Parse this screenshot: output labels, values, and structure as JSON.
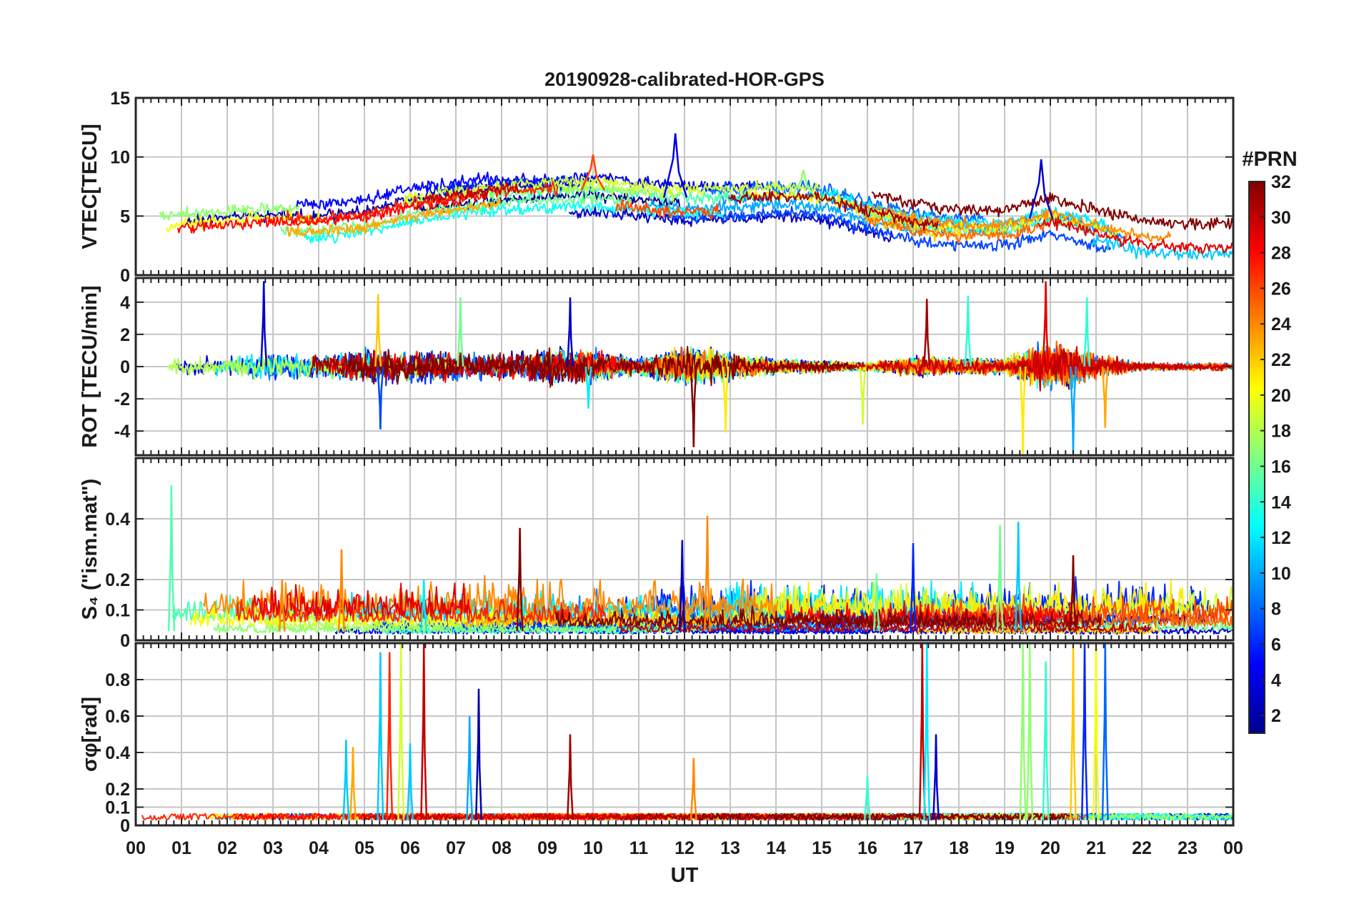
{
  "figure": {
    "title": "20190928-calibrated-HOR-GPS",
    "xlabel": "UT",
    "x_tick_labels": [
      "00",
      "01",
      "02",
      "03",
      "04",
      "05",
      "06",
      "07",
      "08",
      "09",
      "10",
      "11",
      "12",
      "13",
      "14",
      "15",
      "16",
      "17",
      "18",
      "19",
      "20",
      "21",
      "22",
      "23",
      "00"
    ]
  },
  "colorbar": {
    "title": "#PRN",
    "ticks": [
      2,
      4,
      6,
      8,
      10,
      12,
      14,
      16,
      18,
      20,
      22,
      24,
      26,
      28,
      30,
      32
    ],
    "range": [
      1,
      32
    ],
    "colormap": "jet",
    "stops": [
      "#00008f",
      "#0000ff",
      "#0080ff",
      "#00ffff",
      "#80ff80",
      "#ffff00",
      "#ff8000",
      "#ff0000",
      "#800000"
    ]
  },
  "chart_data": [
    {
      "type": "line",
      "panel": "vtec",
      "ylabel": "VTEC[TECU]",
      "ylim": [
        0,
        15
      ],
      "yticks": [
        0,
        5,
        10,
        15
      ],
      "xlim": [
        0,
        24
      ],
      "series_count": 32,
      "profile": {
        "x": [
          0,
          1,
          2,
          3,
          4,
          5,
          6,
          7,
          8,
          9,
          10,
          11,
          12,
          13,
          14,
          15,
          16,
          17,
          18,
          19,
          20,
          21,
          22,
          23,
          24
        ],
        "y": [
          3.5,
          4.0,
          4.3,
          4.5,
          4.4,
          4.8,
          5.8,
          6.3,
          6.8,
          7.0,
          7.2,
          6.8,
          6.5,
          6.5,
          6.8,
          6.6,
          5.5,
          4.5,
          4.0,
          4.0,
          5.0,
          4.0,
          3.0,
          2.8,
          2.8
        ]
      },
      "spread": 1.3,
      "notable": [
        {
          "x": 10.0,
          "y": 10.2
        },
        {
          "x": 11.8,
          "y": 12.0
        },
        {
          "x": 14.6,
          "y": 8.9
        },
        {
          "x": 19.8,
          "y": 9.8
        }
      ]
    },
    {
      "type": "line",
      "panel": "rot",
      "ylabel": "ROT [TECU/min]",
      "ylim": [
        -5.5,
        5.5
      ],
      "yticks": [
        -4,
        -2,
        0,
        2,
        4
      ],
      "xlim": [
        0,
        24
      ],
      "series_count": 32,
      "activity": {
        "x": [
          0,
          1,
          2,
          3,
          4,
          5,
          6,
          7,
          8,
          9,
          10,
          11,
          12,
          13,
          14,
          15,
          16,
          17,
          18,
          19,
          20,
          21,
          22,
          23,
          24
        ],
        "y": [
          0.4,
          0.6,
          0.5,
          0.7,
          0.6,
          0.9,
          0.9,
          0.7,
          0.6,
          0.9,
          0.8,
          0.4,
          1.0,
          0.7,
          0.4,
          0.3,
          0.2,
          0.5,
          0.4,
          0.4,
          1.3,
          0.6,
          0.2,
          0.2,
          0.2
        ]
      },
      "spikes": [
        {
          "x": 2.8,
          "y": 5.3
        },
        {
          "x": 5.3,
          "y": 4.5
        },
        {
          "x": 5.35,
          "y": -3.9
        },
        {
          "x": 7.1,
          "y": 4.3
        },
        {
          "x": 9.5,
          "y": 4.3
        },
        {
          "x": 9.9,
          "y": -2.6
        },
        {
          "x": 12.2,
          "y": -5.0
        },
        {
          "x": 12.9,
          "y": -4.1
        },
        {
          "x": 15.9,
          "y": -3.6
        },
        {
          "x": 17.3,
          "y": 4.2
        },
        {
          "x": 18.2,
          "y": 4.4
        },
        {
          "x": 19.4,
          "y": -5.4
        },
        {
          "x": 19.9,
          "y": 5.3
        },
        {
          "x": 20.5,
          "y": -5.4
        },
        {
          "x": 21.2,
          "y": -3.8
        },
        {
          "x": 20.8,
          "y": 4.3
        }
      ]
    },
    {
      "type": "line",
      "panel": "s4",
      "ylabel": "S₄ (\"ism.mat\")",
      "ylim": [
        0,
        0.6
      ],
      "yticks": [
        0,
        0.1,
        0.2,
        0.4
      ],
      "ytick_labels": [
        "0",
        "0.1",
        "0.2",
        "0.4"
      ],
      "xlim": [
        0,
        24
      ],
      "series_count": 32,
      "peaks": [
        {
          "x": 0.78,
          "y": 0.51
        },
        {
          "x": 4.5,
          "y": 0.3
        },
        {
          "x": 8.4,
          "y": 0.37
        },
        {
          "x": 12.5,
          "y": 0.41
        },
        {
          "x": 11.95,
          "y": 0.33
        },
        {
          "x": 16.2,
          "y": 0.22
        },
        {
          "x": 17.0,
          "y": 0.32
        },
        {
          "x": 19.3,
          "y": 0.39
        },
        {
          "x": 18.9,
          "y": 0.38
        },
        {
          "x": 20.5,
          "y": 0.28
        },
        {
          "x": 3.2,
          "y": 0.2
        },
        {
          "x": 6.3,
          "y": 0.2
        }
      ]
    },
    {
      "type": "line",
      "panel": "sigma_phi",
      "ylabel": "σφ[rad]",
      "ylim": [
        0,
        1.0
      ],
      "yticks": [
        0,
        0.1,
        0.2,
        0.4,
        0.6,
        0.8
      ],
      "ytick_labels": [
        "0",
        "0.1",
        "0.2",
        "0.4",
        "0.6",
        "0.8"
      ],
      "xlim": [
        0,
        24
      ],
      "series_count": 32,
      "baseline": 0.05,
      "spikes": [
        {
          "x": 4.6,
          "y": 0.47
        },
        {
          "x": 4.75,
          "y": 0.43
        },
        {
          "x": 5.35,
          "y": 0.95
        },
        {
          "x": 5.55,
          "y": 0.95
        },
        {
          "x": 5.8,
          "y": 1.0
        },
        {
          "x": 6.0,
          "y": 0.45
        },
        {
          "x": 6.3,
          "y": 1.0
        },
        {
          "x": 7.3,
          "y": 0.6
        },
        {
          "x": 7.5,
          "y": 0.75
        },
        {
          "x": 9.5,
          "y": 0.5
        },
        {
          "x": 12.2,
          "y": 0.37
        },
        {
          "x": 16.0,
          "y": 0.27
        },
        {
          "x": 17.2,
          "y": 1.0
        },
        {
          "x": 17.3,
          "y": 1.0
        },
        {
          "x": 17.5,
          "y": 0.5
        },
        {
          "x": 19.4,
          "y": 1.0
        },
        {
          "x": 19.55,
          "y": 1.0
        },
        {
          "x": 19.9,
          "y": 0.9
        },
        {
          "x": 20.5,
          "y": 1.0
        },
        {
          "x": 20.75,
          "y": 1.0
        },
        {
          "x": 21.0,
          "y": 1.0
        },
        {
          "x": 21.2,
          "y": 1.0
        }
      ]
    }
  ]
}
